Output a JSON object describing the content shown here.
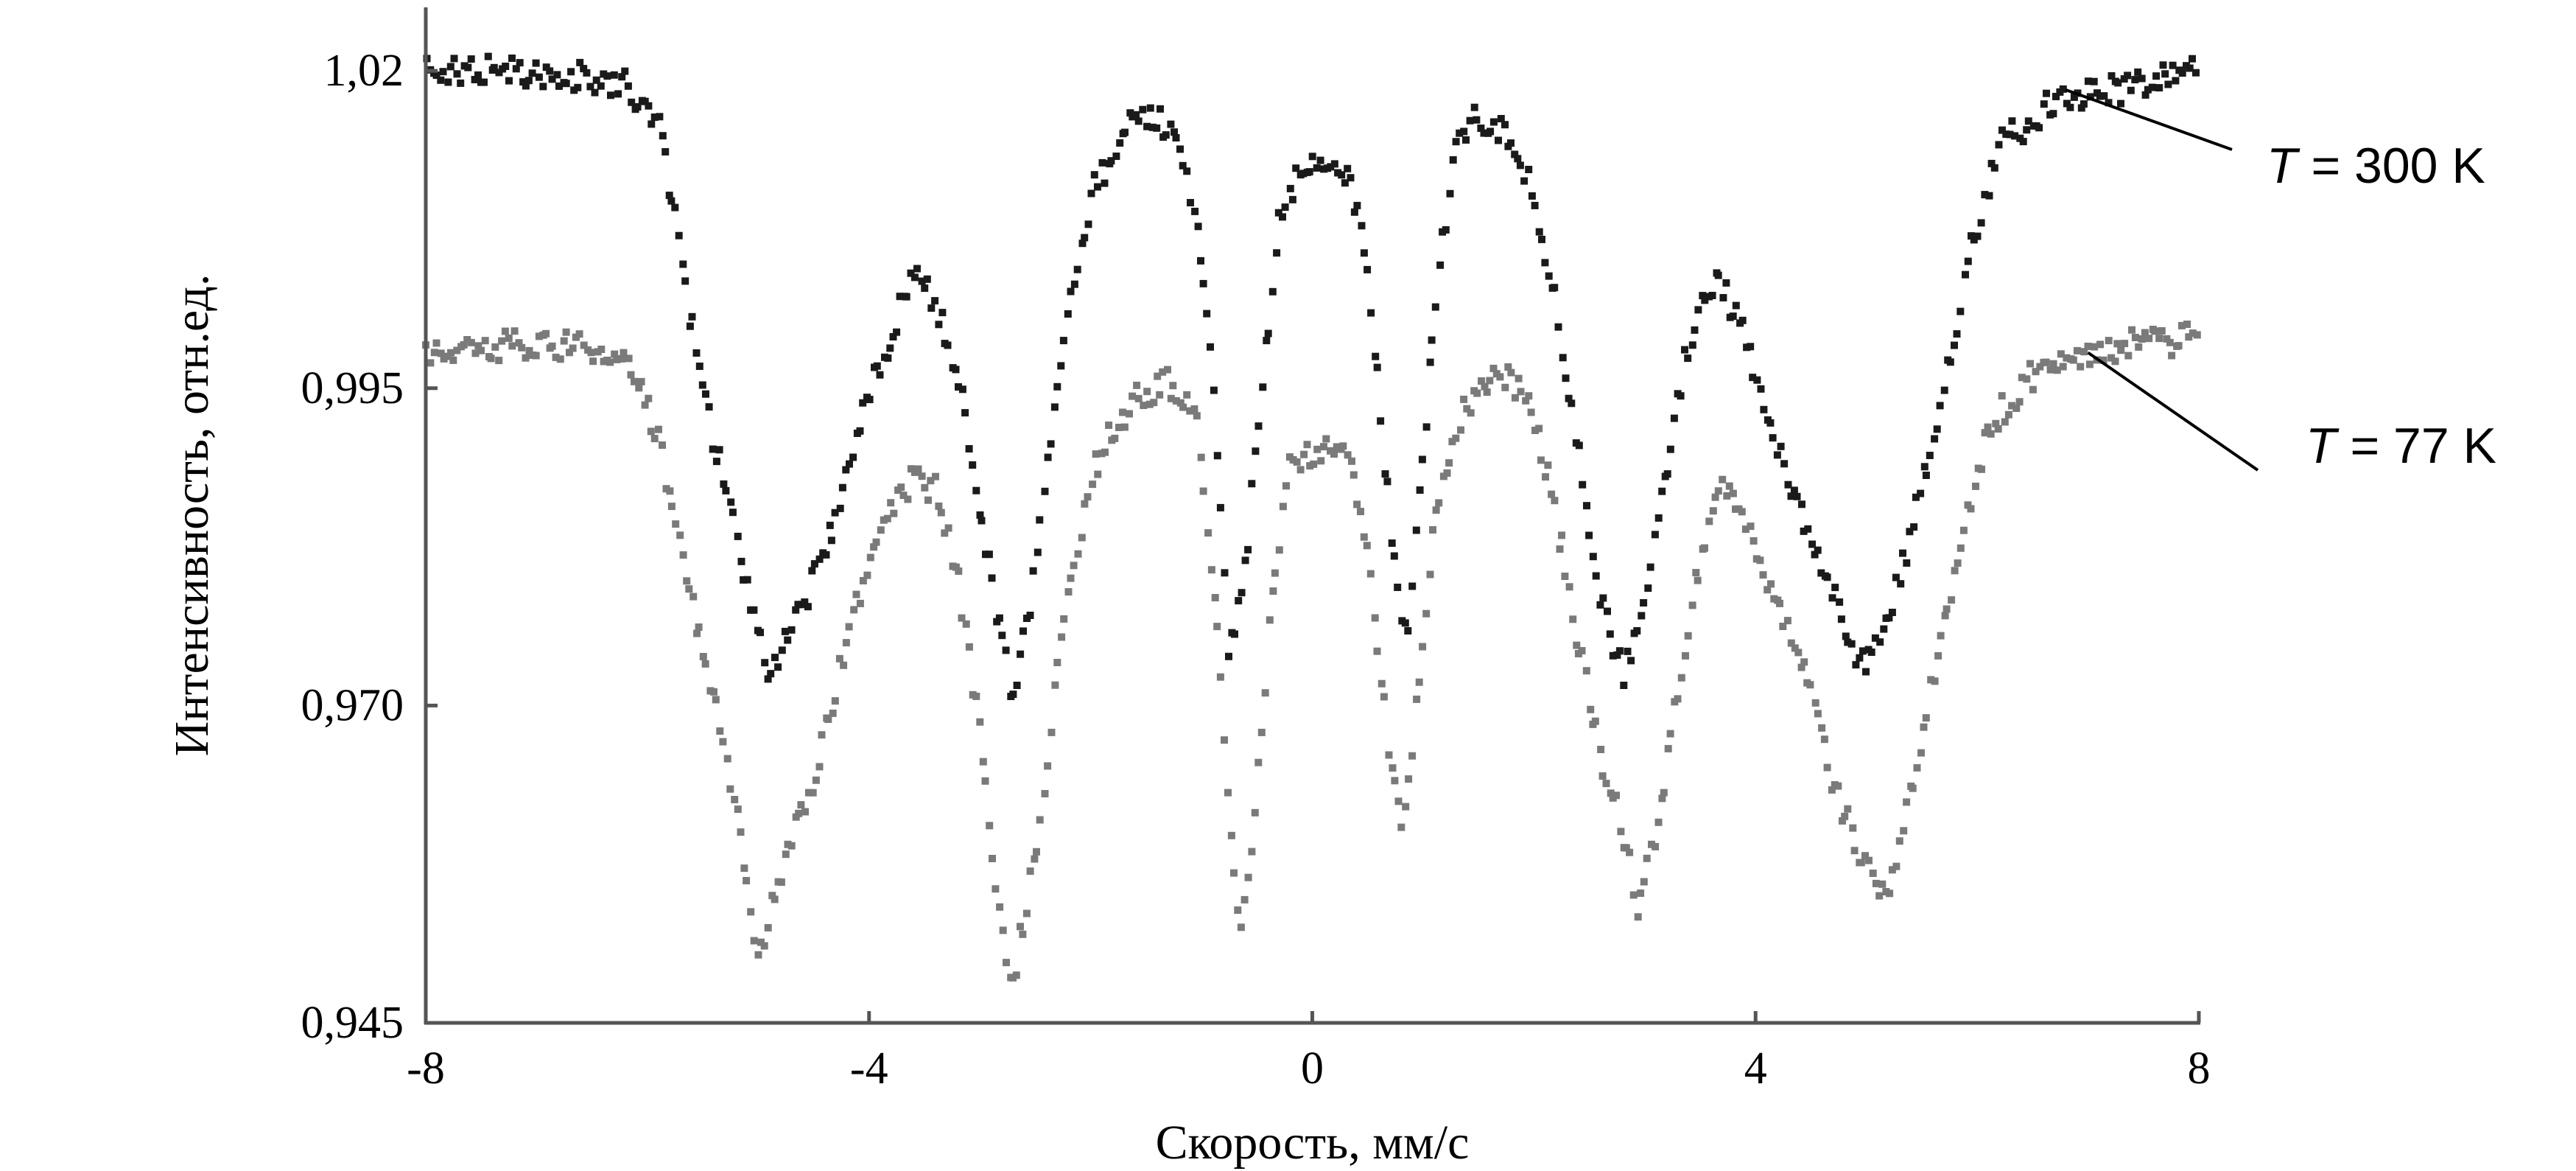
{
  "chart_data": {
    "type": "scatter",
    "title": "",
    "xlabel": "Скорость, мм/с",
    "ylabel": "Интенсивность, отн.ед.",
    "xlim": [
      -8,
      8
    ],
    "ylim": [
      0.945,
      1.025
    ],
    "x_ticks": [
      "-8",
      "-4",
      "0",
      "4",
      "8"
    ],
    "y_ticks": [
      "0,945",
      "0,970",
      "0,995",
      "1,02"
    ],
    "y_tick_values": [
      0.945,
      0.97,
      0.995,
      1.02
    ],
    "x_tick_values": [
      -8,
      -4,
      0,
      4,
      8
    ],
    "grid": false,
    "series": [
      {
        "label_var": "T",
        "label_rest": " = 300 K",
        "color": "#1a1a1a",
        "baseline": 1.02,
        "noise": 0.0012,
        "points": [
          [
            -8.0,
            1.02
          ],
          [
            -7.0,
            1.02
          ],
          [
            -6.2,
            1.019
          ],
          [
            -5.9,
            1.016
          ],
          [
            -5.75,
            1.008
          ],
          [
            -5.55,
            0.997
          ],
          [
            -5.3,
            0.987
          ],
          [
            -5.05,
            0.977
          ],
          [
            -4.9,
            0.9725
          ],
          [
            -4.7,
            0.976
          ],
          [
            -4.4,
            0.982
          ],
          [
            -4.1,
            0.992
          ],
          [
            -3.85,
            0.998
          ],
          [
            -3.6,
            1.0045
          ],
          [
            -3.4,
            1.002
          ],
          [
            -3.2,
            0.996
          ],
          [
            -3.0,
            0.986
          ],
          [
            -2.85,
            0.977
          ],
          [
            -2.7,
            0.971
          ],
          [
            -2.55,
            0.978
          ],
          [
            -2.4,
            0.988
          ],
          [
            -2.2,
            1.001
          ],
          [
            -2.0,
            1.01
          ],
          [
            -1.7,
            1.0155
          ],
          [
            -1.4,
            1.0165
          ],
          [
            -1.15,
            1.013
          ],
          [
            -1.0,
            1.005
          ],
          [
            -0.85,
            0.99
          ],
          [
            -0.75,
            0.974
          ],
          [
            -0.6,
            0.981
          ],
          [
            -0.45,
            0.996
          ],
          [
            -0.3,
            1.008
          ],
          [
            -0.1,
            1.0125
          ],
          [
            0.1,
            1.0125
          ],
          [
            0.3,
            1.012
          ],
          [
            0.45,
            1.008
          ],
          [
            0.6,
            0.995
          ],
          [
            0.75,
            0.98
          ],
          [
            0.85,
            0.975
          ],
          [
            1.0,
            0.99
          ],
          [
            1.15,
            1.005
          ],
          [
            1.3,
            1.014
          ],
          [
            1.5,
            1.0165
          ],
          [
            1.8,
            1.0145
          ],
          [
            2.0,
            1.01
          ],
          [
            2.2,
            1.002
          ],
          [
            2.4,
            0.99
          ],
          [
            2.6,
            0.978
          ],
          [
            2.8,
            0.9725
          ],
          [
            3.0,
            0.978
          ],
          [
            3.2,
            0.989
          ],
          [
            3.4,
            0.999
          ],
          [
            3.65,
            1.0035
          ],
          [
            3.85,
            1.0005
          ],
          [
            4.05,
            0.994
          ],
          [
            4.3,
            0.988
          ],
          [
            4.6,
            0.981
          ],
          [
            4.9,
            0.974
          ],
          [
            5.05,
            0.9735
          ],
          [
            5.3,
            0.98
          ],
          [
            5.55,
            0.989
          ],
          [
            5.75,
            0.997
          ],
          [
            5.95,
            1.006
          ],
          [
            6.2,
            1.014
          ],
          [
            6.6,
            1.017
          ],
          [
            7.0,
            1.018
          ],
          [
            8.0,
            1.02
          ]
        ]
      },
      {
        "label_var": "T",
        "label_rest": " = 77 K",
        "color": "#7a7a7a",
        "baseline": 0.9985,
        "noise": 0.0012,
        "points": [
          [
            -8.0,
            0.998
          ],
          [
            -7.0,
            0.9985
          ],
          [
            -6.4,
            0.998
          ],
          [
            -6.1,
            0.996
          ],
          [
            -5.9,
            0.991
          ],
          [
            -5.7,
            0.982
          ],
          [
            -5.5,
            0.974
          ],
          [
            -5.3,
            0.967
          ],
          [
            -5.15,
            0.959
          ],
          [
            -5.0,
            0.95
          ],
          [
            -4.8,
            0.957
          ],
          [
            -4.5,
            0.964
          ],
          [
            -4.2,
            0.975
          ],
          [
            -3.9,
            0.984
          ],
          [
            -3.6,
            0.988
          ],
          [
            -3.4,
            0.987
          ],
          [
            -3.2,
            0.98
          ],
          [
            -3.0,
            0.968
          ],
          [
            -2.85,
            0.955
          ],
          [
            -2.7,
            0.948
          ],
          [
            -2.55,
            0.956
          ],
          [
            -2.4,
            0.965
          ],
          [
            -2.2,
            0.98
          ],
          [
            -1.9,
            0.9905
          ],
          [
            -1.6,
            0.994
          ],
          [
            -1.3,
            0.9955
          ],
          [
            -1.05,
            0.993
          ],
          [
            -0.9,
            0.981
          ],
          [
            -0.75,
            0.962
          ],
          [
            -0.65,
            0.952
          ],
          [
            -0.5,
            0.963
          ],
          [
            -0.35,
            0.98
          ],
          [
            -0.2,
            0.9895
          ],
          [
            0.0,
            0.99
          ],
          [
            0.2,
            0.991
          ],
          [
            0.35,
            0.989
          ],
          [
            0.5,
            0.982
          ],
          [
            0.65,
            0.97
          ],
          [
            0.8,
            0.96
          ],
          [
            0.95,
            0.97
          ],
          [
            1.1,
            0.984
          ],
          [
            1.3,
            0.992
          ],
          [
            1.55,
            0.9955
          ],
          [
            1.8,
            0.9955
          ],
          [
            2.0,
            0.993
          ],
          [
            2.2,
            0.985
          ],
          [
            2.4,
            0.975
          ],
          [
            2.6,
            0.966
          ],
          [
            2.8,
            0.96
          ],
          [
            2.95,
            0.954
          ],
          [
            3.1,
            0.96
          ],
          [
            3.3,
            0.971
          ],
          [
            3.5,
            0.982
          ],
          [
            3.7,
            0.9875
          ],
          [
            3.9,
            0.985
          ],
          [
            4.1,
            0.98
          ],
          [
            4.4,
            0.974
          ],
          [
            4.7,
            0.964
          ],
          [
            4.95,
            0.958
          ],
          [
            5.2,
            0.955
          ],
          [
            5.4,
            0.963
          ],
          [
            5.6,
            0.972
          ],
          [
            5.85,
            0.983
          ],
          [
            6.1,
            0.992
          ],
          [
            6.5,
            0.996
          ],
          [
            7.0,
            0.998
          ],
          [
            8.0,
            0.999
          ]
        ]
      }
    ]
  }
}
